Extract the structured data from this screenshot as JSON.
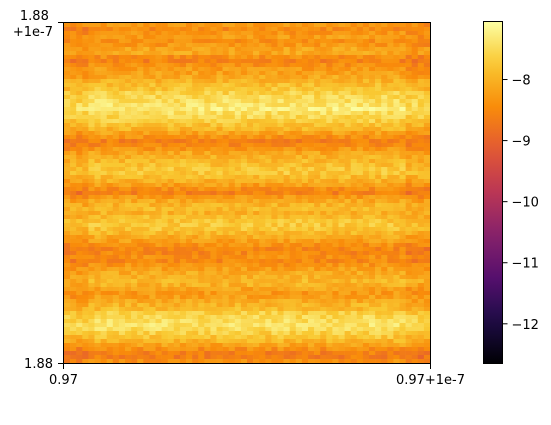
{
  "chart_data": {
    "type": "heatmap",
    "title": "",
    "xlabel": "",
    "ylabel": "",
    "x_ticks": [
      {
        "value": 0.97,
        "label": "0.97"
      },
      {
        "value": 0.9700001,
        "label": "0.97+1e-7"
      }
    ],
    "y_ticks": [
      {
        "value": 1.88,
        "label": "1.88"
      },
      {
        "value": 1.8800001,
        "label": "1.88\n+1e-7"
      }
    ],
    "xlim": [
      0.97,
      0.9700001
    ],
    "ylim": [
      1.88,
      1.8800001
    ],
    "colormap": "inferno",
    "colorbar": {
      "range": [
        -12.65,
        -7.05
      ],
      "ticks": [
        -8,
        -9,
        -10,
        -11,
        -12
      ],
      "tick_labels": [
        "−8",
        "−9",
        "−10",
        "−11",
        "−12"
      ]
    },
    "pattern": "horizontal bands: values vary mainly along y, roughly constant along x",
    "row_profile_from_top": [
      -8.3,
      -8.5,
      -8.2,
      -8.4,
      -8.3,
      -8.0,
      -8.4,
      -8.6,
      -8.3,
      -8.2,
      -8.1,
      -7.9,
      -7.8,
      -7.6,
      -7.5,
      -7.4,
      -7.3,
      -7.5,
      -7.6,
      -7.8,
      -8.0,
      -8.3,
      -8.6,
      -8.5,
      -8.2,
      -8.0,
      -7.9,
      -7.8,
      -7.7,
      -7.9,
      -8.1,
      -8.4,
      -8.6,
      -8.2,
      -8.0,
      -7.9,
      -8.0,
      -7.8,
      -7.7,
      -7.8,
      -8.0,
      -8.2,
      -8.4,
      -8.6,
      -8.4,
      -8.5,
      -8.3,
      -8.1,
      -8.0,
      -7.9,
      -8.1,
      -8.3,
      -8.2,
      -8.0,
      -7.9,
      -7.6,
      -7.5,
      -7.4,
      -7.5,
      -7.7,
      -7.9,
      -8.2,
      -8.5,
      -8.7,
      -8.4
    ]
  }
}
